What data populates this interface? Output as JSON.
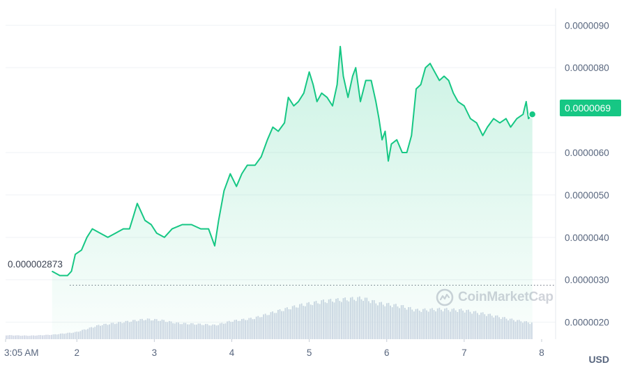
{
  "chart_data": {
    "type": "area",
    "currency": "USD",
    "current_price": "0.0000069",
    "start_price": "0.000002873",
    "y_tick_labels": [
      "0.0000090",
      "0.0000080",
      "0.0000069",
      "0.0000060",
      "0.0000050",
      "0.0000040",
      "0.0000030",
      "0.0000020"
    ],
    "y_ticks": [
      9e-06,
      8e-06,
      6e-06,
      5e-06,
      4e-06,
      3e-06,
      2e-06
    ],
    "ylim": [
      1.6e-06,
      9.3e-06
    ],
    "x_tick_labels": [
      "3:05 AM",
      "2",
      "3",
      "4",
      "5",
      "6",
      "7",
      "8"
    ],
    "xlim": [
      0,
      7.1
    ],
    "x_ticks": [
      0,
      0.92,
      1.92,
      2.92,
      3.92,
      4.92,
      5.92,
      6.92
    ],
    "grid": true,
    "price_series": {
      "name": "Price",
      "points": [
        [
          0.6,
          3.2e-06
        ],
        [
          0.7,
          3.1e-06
        ],
        [
          0.8,
          3.1e-06
        ],
        [
          0.85,
          3.2e-06
        ],
        [
          0.9,
          3.6e-06
        ],
        [
          0.98,
          3.7e-06
        ],
        [
          1.05,
          4e-06
        ],
        [
          1.12,
          4.2e-06
        ],
        [
          1.22,
          4.1e-06
        ],
        [
          1.32,
          4e-06
        ],
        [
          1.42,
          4.1e-06
        ],
        [
          1.52,
          4.2e-06
        ],
        [
          1.6,
          4.2e-06
        ],
        [
          1.65,
          4.5e-06
        ],
        [
          1.7,
          4.8e-06
        ],
        [
          1.75,
          4.6e-06
        ],
        [
          1.8,
          4.4e-06
        ],
        [
          1.88,
          4.3e-06
        ],
        [
          1.95,
          4.1e-06
        ],
        [
          2.05,
          4e-06
        ],
        [
          2.15,
          4.2e-06
        ],
        [
          2.28,
          4.3e-06
        ],
        [
          2.4,
          4.3e-06
        ],
        [
          2.52,
          4.2e-06
        ],
        [
          2.62,
          4.2e-06
        ],
        [
          2.7,
          3.8e-06
        ],
        [
          2.75,
          4.4e-06
        ],
        [
          2.82,
          5.1e-06
        ],
        [
          2.9,
          5.5e-06
        ],
        [
          2.98,
          5.2e-06
        ],
        [
          3.05,
          5.5e-06
        ],
        [
          3.12,
          5.7e-06
        ],
        [
          3.22,
          5.7e-06
        ],
        [
          3.3,
          5.9e-06
        ],
        [
          3.38,
          6.3e-06
        ],
        [
          3.45,
          6.6e-06
        ],
        [
          3.52,
          6.5e-06
        ],
        [
          3.6,
          6.7e-06
        ],
        [
          3.65,
          7.3e-06
        ],
        [
          3.72,
          7.1e-06
        ],
        [
          3.78,
          7.2e-06
        ],
        [
          3.85,
          7.4e-06
        ],
        [
          3.92,
          7.9e-06
        ],
        [
          3.97,
          7.6e-06
        ],
        [
          4.02,
          7.2e-06
        ],
        [
          4.08,
          7.4e-06
        ],
        [
          4.15,
          7.3e-06
        ],
        [
          4.22,
          7.1e-06
        ],
        [
          4.28,
          7.6e-06
        ],
        [
          4.32,
          8.5e-06
        ],
        [
          4.36,
          7.8e-06
        ],
        [
          4.42,
          7.3e-06
        ],
        [
          4.48,
          7.8e-06
        ],
        [
          4.52,
          8e-06
        ],
        [
          4.58,
          7.2e-06
        ],
        [
          4.65,
          7.7e-06
        ],
        [
          4.72,
          7.7e-06
        ],
        [
          4.78,
          7.2e-06
        ],
        [
          4.82,
          6.8e-06
        ],
        [
          4.86,
          6.3e-06
        ],
        [
          4.9,
          6.5e-06
        ],
        [
          4.94,
          5.8e-06
        ],
        [
          4.98,
          6.2e-06
        ],
        [
          5.05,
          6.3e-06
        ],
        [
          5.12,
          6e-06
        ],
        [
          5.18,
          6e-06
        ],
        [
          5.24,
          6.4e-06
        ],
        [
          5.3,
          7.5e-06
        ],
        [
          5.36,
          7.6e-06
        ],
        [
          5.42,
          8e-06
        ],
        [
          5.48,
          8.1e-06
        ],
        [
          5.54,
          7.9e-06
        ],
        [
          5.6,
          7.7e-06
        ],
        [
          5.66,
          7.8e-06
        ],
        [
          5.72,
          7.7e-06
        ],
        [
          5.78,
          7.4e-06
        ],
        [
          5.84,
          7.2e-06
        ],
        [
          5.92,
          7.1e-06
        ],
        [
          6.0,
          6.8e-06
        ],
        [
          6.08,
          6.7e-06
        ],
        [
          6.16,
          6.4e-06
        ],
        [
          6.22,
          6.6e-06
        ],
        [
          6.3,
          6.8e-06
        ],
        [
          6.38,
          6.7e-06
        ],
        [
          6.46,
          6.8e-06
        ],
        [
          6.52,
          6.6e-06
        ],
        [
          6.6,
          6.8e-06
        ],
        [
          6.68,
          6.9e-06
        ],
        [
          6.72,
          7.2e-06
        ],
        [
          6.75,
          6.8e-06
        ],
        [
          6.8,
          6.9e-06
        ]
      ]
    },
    "volume_series": {
      "name": "Volume",
      "points": [
        [
          0.0,
          0.08
        ],
        [
          0.3,
          0.07
        ],
        [
          0.6,
          0.09
        ],
        [
          0.9,
          0.14
        ],
        [
          1.2,
          0.28
        ],
        [
          1.5,
          0.34
        ],
        [
          1.8,
          0.4
        ],
        [
          2.0,
          0.38
        ],
        [
          2.2,
          0.32
        ],
        [
          2.5,
          0.3
        ],
        [
          2.7,
          0.28
        ],
        [
          2.9,
          0.36
        ],
        [
          3.2,
          0.42
        ],
        [
          3.5,
          0.56
        ],
        [
          3.8,
          0.68
        ],
        [
          4.1,
          0.76
        ],
        [
          4.4,
          0.8
        ],
        [
          4.6,
          0.82
        ],
        [
          4.8,
          0.72
        ],
        [
          5.1,
          0.66
        ],
        [
          5.3,
          0.58
        ],
        [
          5.6,
          0.6
        ],
        [
          5.9,
          0.58
        ],
        [
          6.2,
          0.5
        ],
        [
          6.5,
          0.4
        ],
        [
          6.8,
          0.32
        ]
      ]
    }
  },
  "ui": {
    "unit_label": "USD",
    "watermark": "CoinMarketCap",
    "accent_color": "#16c784",
    "volume_color": "#cfd6e4",
    "grid_color": "#eff2f5",
    "label_color": "#58667e"
  }
}
